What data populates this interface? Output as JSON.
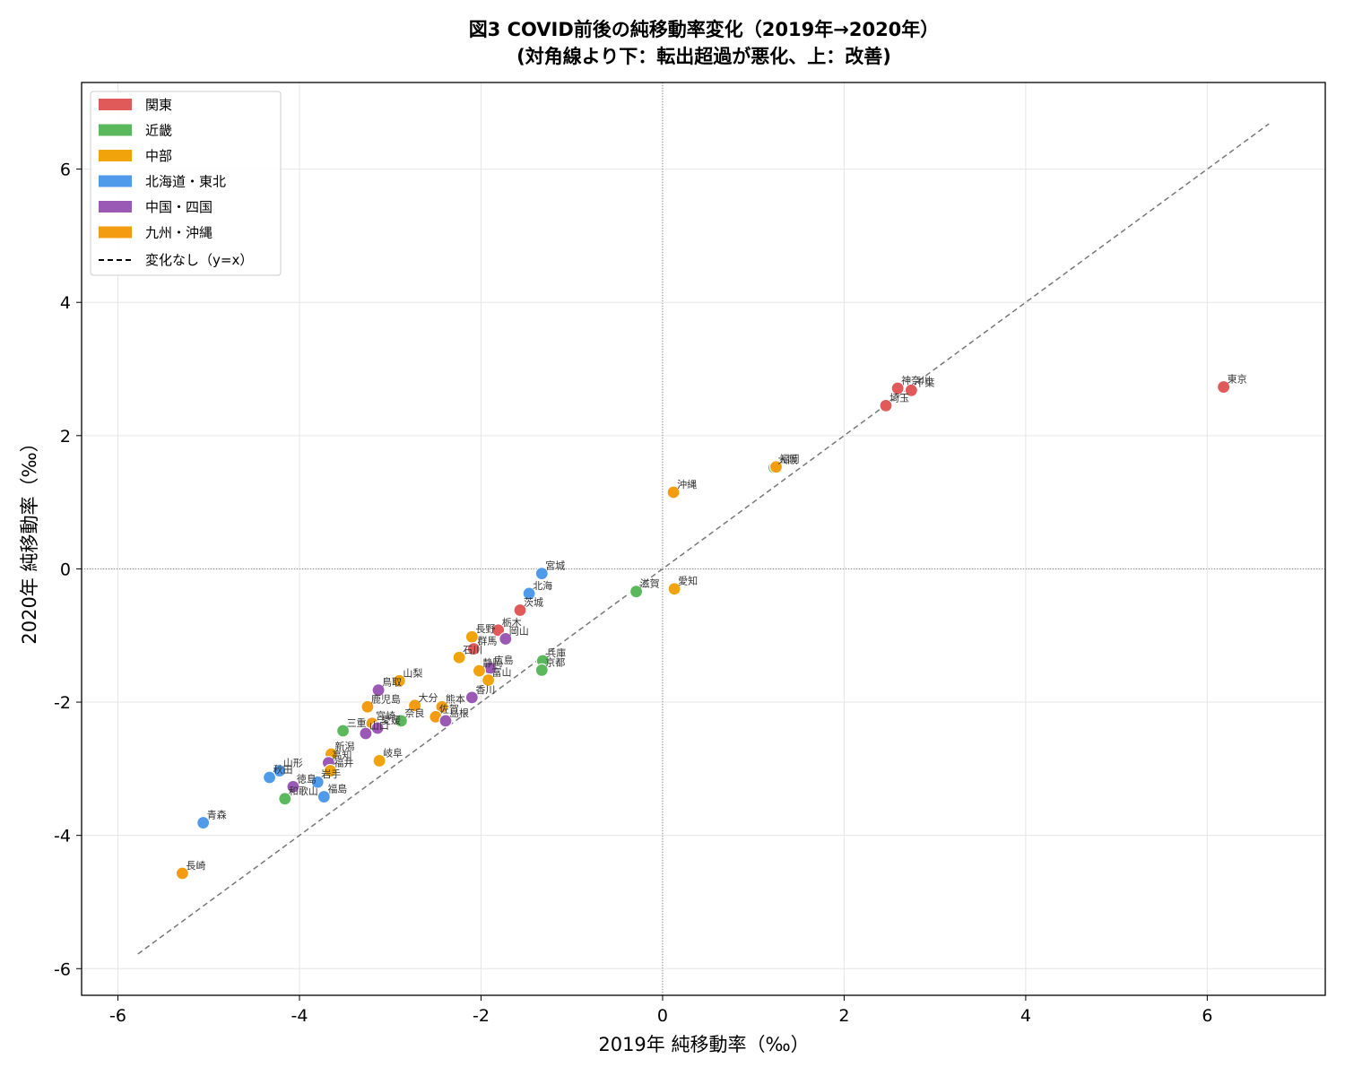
{
  "chart_data": {
    "type": "scatter",
    "title": "図3 COVID前後の純移動率変化（2019年→2020年）",
    "subtitle": "(対角線より下：転出超過が悪化、上：改善)",
    "xlabel": "2019年 純移動率（‰）",
    "ylabel": "2020年 純移動率（‰）",
    "xlim": [
      -6.4,
      7.3
    ],
    "ylim": [
      -6.4,
      7.3
    ],
    "xticks": [
      -6,
      -4,
      -2,
      0,
      2,
      4,
      6
    ],
    "yticks": [
      -6,
      -4,
      -2,
      0,
      2,
      4,
      6
    ],
    "xtick_labels": [
      "-6",
      "-4",
      "-2",
      "0",
      "2",
      "4",
      "6"
    ],
    "ytick_labels": [
      "-6",
      "-4",
      "-2",
      "0",
      "2",
      "4",
      "6"
    ],
    "grid": true,
    "legend_position": "top-left",
    "reference_line": {
      "label": "変化なし（y=x）",
      "from": -5.78,
      "to": 6.68,
      "color": "#777777"
    },
    "zero_lines": true,
    "regions": [
      {
        "key": "kanto",
        "name": "関東",
        "color": "#e05a5a"
      },
      {
        "key": "kinki",
        "name": "近畿",
        "color": "#5cb85c"
      },
      {
        "key": "chubu",
        "name": "中部",
        "color": "#f0a30a"
      },
      {
        "key": "hokkaido_tohoku",
        "name": "北海道・東北",
        "color": "#4f9bea"
      },
      {
        "key": "chugoku_shikoku",
        "name": "中国・四国",
        "color": "#9b59b6"
      },
      {
        "key": "kyushu_okinawa",
        "name": "九州・沖縄",
        "color": "#f39c12"
      }
    ],
    "points": [
      {
        "label": "東京",
        "x": 6.18,
        "y": 2.73,
        "region": "kanto"
      },
      {
        "label": "神奈川",
        "x": 2.59,
        "y": 2.71,
        "region": "kanto"
      },
      {
        "label": "千葉",
        "x": 2.74,
        "y": 2.68,
        "region": "kanto"
      },
      {
        "label": "埼玉",
        "x": 2.46,
        "y": 2.45,
        "region": "kanto"
      },
      {
        "label": "大阪",
        "x": 1.23,
        "y": 1.52,
        "region": "kinki"
      },
      {
        "label": "福岡",
        "x": 1.25,
        "y": 1.53,
        "region": "kyushu_okinawa"
      },
      {
        "label": "沖縄",
        "x": 0.12,
        "y": 1.15,
        "region": "kyushu_okinawa"
      },
      {
        "label": "愛知",
        "x": 0.13,
        "y": -0.3,
        "region": "chubu"
      },
      {
        "label": "滋賀",
        "x": -0.29,
        "y": -0.34,
        "region": "kinki"
      },
      {
        "label": "宮城",
        "x": -1.33,
        "y": -0.07,
        "region": "hokkaido_tohoku"
      },
      {
        "label": "北海",
        "x": -1.47,
        "y": -0.37,
        "region": "hokkaido_tohoku"
      },
      {
        "label": "茨城",
        "x": -1.57,
        "y": -0.62,
        "region": "kanto"
      },
      {
        "label": "栃木",
        "x": -1.81,
        "y": -0.92,
        "region": "kanto"
      },
      {
        "label": "岡山",
        "x": -1.73,
        "y": -1.05,
        "region": "chugoku_shikoku"
      },
      {
        "label": "長野",
        "x": -2.1,
        "y": -1.02,
        "region": "chubu"
      },
      {
        "label": "群馬",
        "x": -2.08,
        "y": -1.2,
        "region": "kanto"
      },
      {
        "label": "石川",
        "x": -2.24,
        "y": -1.33,
        "region": "chubu"
      },
      {
        "label": "兵庫",
        "x": -1.32,
        "y": -1.38,
        "region": "kinki"
      },
      {
        "label": "京都",
        "x": -1.33,
        "y": -1.52,
        "region": "kinki"
      },
      {
        "label": "広島",
        "x": -1.9,
        "y": -1.49,
        "region": "chugoku_shikoku"
      },
      {
        "label": "静岡",
        "x": -2.02,
        "y": -1.53,
        "region": "chubu"
      },
      {
        "label": "富山",
        "x": -1.92,
        "y": -1.67,
        "region": "chubu"
      },
      {
        "label": "山梨",
        "x": -2.9,
        "y": -1.68,
        "region": "chubu"
      },
      {
        "label": "香川",
        "x": -2.1,
        "y": -1.93,
        "region": "chugoku_shikoku"
      },
      {
        "label": "鳥取",
        "x": -3.13,
        "y": -1.82,
        "region": "chugoku_shikoku"
      },
      {
        "label": "鹿児島",
        "x": -3.25,
        "y": -2.07,
        "region": "kyushu_okinawa"
      },
      {
        "label": "大分",
        "x": -2.73,
        "y": -2.05,
        "region": "kyushu_okinawa"
      },
      {
        "label": "熊本",
        "x": -2.43,
        "y": -2.07,
        "region": "kyushu_okinawa"
      },
      {
        "label": "佐賀",
        "x": -2.5,
        "y": -2.22,
        "region": "kyushu_okinawa"
      },
      {
        "label": "島根",
        "x": -2.39,
        "y": -2.28,
        "region": "chugoku_shikoku"
      },
      {
        "label": "奈良",
        "x": -2.88,
        "y": -2.28,
        "region": "kinki"
      },
      {
        "label": "宮崎",
        "x": -3.2,
        "y": -2.32,
        "region": "kyushu_okinawa"
      },
      {
        "label": "愛媛",
        "x": -3.14,
        "y": -2.39,
        "region": "chugoku_shikoku"
      },
      {
        "label": "山口",
        "x": -3.27,
        "y": -2.47,
        "region": "chugoku_shikoku"
      },
      {
        "label": "三重",
        "x": -3.52,
        "y": -2.43,
        "region": "kinki"
      },
      {
        "label": "新潟",
        "x": -3.65,
        "y": -2.78,
        "region": "chubu"
      },
      {
        "label": "岐阜",
        "x": -3.12,
        "y": -2.88,
        "region": "chubu"
      },
      {
        "label": "高知",
        "x": -3.68,
        "y": -2.91,
        "region": "chugoku_shikoku"
      },
      {
        "label": "福井",
        "x": -3.66,
        "y": -3.03,
        "region": "chubu"
      },
      {
        "label": "山形",
        "x": -4.22,
        "y": -3.03,
        "region": "hokkaido_tohoku"
      },
      {
        "label": "秋田",
        "x": -4.33,
        "y": -3.13,
        "region": "hokkaido_tohoku"
      },
      {
        "label": "岩手",
        "x": -3.8,
        "y": -3.2,
        "region": "hokkaido_tohoku"
      },
      {
        "label": "徳島",
        "x": -4.07,
        "y": -3.27,
        "region": "chugoku_shikoku"
      },
      {
        "label": "和歌山",
        "x": -4.16,
        "y": -3.45,
        "region": "kinki"
      },
      {
        "label": "福島",
        "x": -3.73,
        "y": -3.42,
        "region": "hokkaido_tohoku"
      },
      {
        "label": "青森",
        "x": -5.06,
        "y": -3.81,
        "region": "hokkaido_tohoku"
      },
      {
        "label": "長崎",
        "x": -5.29,
        "y": -4.57,
        "region": "kyushu_okinawa"
      }
    ]
  }
}
